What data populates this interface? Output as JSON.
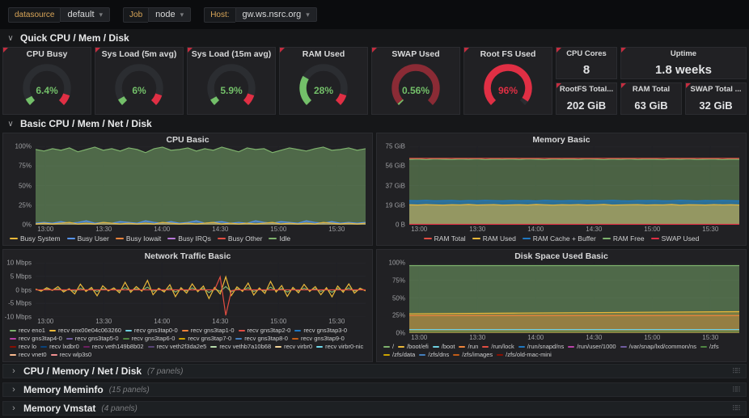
{
  "icons": {
    "caret_down": "▾",
    "chevron_open": "∨",
    "chevron_right": "›",
    "drag_dots": "⠿⠿"
  },
  "topbar": {
    "variables": [
      {
        "label": "datasource",
        "value": "default"
      },
      {
        "label": "Job",
        "value": "node"
      },
      {
        "label": "Host:",
        "value": "gw.ws.nsrc.org"
      }
    ]
  },
  "rows": {
    "quick": {
      "title": "Quick CPU / Mem / Disk"
    },
    "basic": {
      "title": "Basic CPU / Mem / Net / Disk"
    },
    "collapsed": [
      {
        "title": "CPU / Memory / Net / Disk",
        "count": "(7 panels)"
      },
      {
        "title": "Memory Meminfo",
        "count": "(15 panels)"
      },
      {
        "title": "Memory Vmstat",
        "count": "(4 panels)"
      }
    ]
  },
  "gauges": [
    {
      "title": "CPU Busy",
      "value": "6.4%",
      "percent": 6.4,
      "arc_color": "#73bf69",
      "ring_color": "#2b2d31",
      "text_color": "#73bf69",
      "threshold_from": 90,
      "threshold_color": "#e02f44"
    },
    {
      "title": "Sys Load (5m avg)",
      "value": "6%",
      "percent": 6,
      "arc_color": "#73bf69",
      "ring_color": "#2b2d31",
      "text_color": "#73bf69",
      "threshold_from": 90,
      "threshold_color": "#e02f44"
    },
    {
      "title": "Sys Load (15m avg)",
      "value": "5.9%",
      "percent": 5.9,
      "arc_color": "#73bf69",
      "ring_color": "#2b2d31",
      "text_color": "#73bf69",
      "threshold_from": 90,
      "threshold_color": "#e02f44"
    },
    {
      "title": "RAM Used",
      "value": "28%",
      "percent": 28,
      "arc_color": "#73bf69",
      "ring_color": "#2b2d31",
      "text_color": "#73bf69",
      "threshold_from": 90,
      "threshold_color": "#e02f44"
    },
    {
      "title": "SWAP Used",
      "value": "0.56%",
      "percent": 0.56,
      "arc_color": "#73bf69",
      "ring_color": "#8a2b35",
      "text_color": "#73bf69"
    },
    {
      "title": "Root FS Used",
      "value": "96%",
      "percent": 96,
      "arc_color": "#e02f44",
      "ring_color": "#2b2d31",
      "text_color": "#e02f44"
    }
  ],
  "stats": [
    {
      "title": "CPU Cores",
      "value": "8"
    },
    {
      "title": "Uptime",
      "value": "1.8 weeks"
    },
    {
      "title": "RootFS Total...",
      "value": "202 GiB"
    },
    {
      "title": "RAM Total",
      "value": "63 GiB"
    },
    {
      "title": "SWAP Total ...",
      "value": "32 GiB"
    }
  ],
  "chart_data": [
    {
      "type": "area",
      "title": "CPU Basic",
      "ylim": [
        0,
        100
      ],
      "yticks": [
        "100%",
        "75%",
        "50%",
        "25%",
        "0%"
      ],
      "xticks": [
        "13:00",
        "13:30",
        "14:00",
        "14:30",
        "15:00",
        "15:30"
      ],
      "series": [
        {
          "name": "Idle",
          "color": "#7eb26d",
          "fill": 0.5,
          "values": [
            96,
            94,
            97,
            95,
            98,
            93,
            96,
            99,
            95,
            97,
            94,
            98,
            96,
            92,
            97,
            99,
            95,
            96,
            98,
            94,
            97,
            95,
            99,
            96,
            93,
            98,
            96,
            97,
            92,
            95,
            98,
            96,
            94,
            97,
            99,
            95,
            96,
            98,
            95,
            97
          ]
        },
        {
          "name": "Busy User",
          "color": "#5794f2",
          "fill": 0.45,
          "values": [
            2,
            3,
            2,
            4,
            2,
            3,
            5,
            2,
            3,
            2,
            4,
            3,
            2,
            5,
            3,
            2,
            4,
            2,
            3,
            5,
            2,
            3,
            4,
            2,
            3,
            2,
            5,
            3,
            2,
            4,
            3,
            2,
            5,
            3,
            2,
            4,
            2,
            3,
            2,
            3
          ]
        },
        {
          "name": "Busy System",
          "color": "#eab839",
          "fill": 0.45,
          "values": [
            1,
            2,
            1,
            2,
            3,
            1,
            2,
            1,
            3,
            2,
            1,
            2,
            1,
            2,
            1,
            3,
            2,
            1,
            2,
            1,
            2,
            3,
            1,
            2,
            1,
            2,
            1,
            2,
            3,
            1,
            2,
            1,
            2,
            1,
            3,
            2,
            1,
            2,
            1,
            2
          ]
        }
      ],
      "legend": [
        {
          "name": "Busy System",
          "color": "#eab839"
        },
        {
          "name": "Busy User",
          "color": "#5794f2"
        },
        {
          "name": "Busy Iowait",
          "color": "#ef843c"
        },
        {
          "name": "Busy IRQs",
          "color": "#b877d9"
        },
        {
          "name": "Busy Other",
          "color": "#e24d42"
        },
        {
          "name": "Idle",
          "color": "#7eb26d"
        }
      ]
    },
    {
      "type": "area",
      "title": "Memory Basic",
      "ylim": [
        0,
        75
      ],
      "yticks": [
        "75 GiB",
        "56 GiB",
        "37 GiB",
        "19 GiB",
        "0 B"
      ],
      "xticks": [
        "13:00",
        "13:30",
        "14:00",
        "14:30",
        "15:00",
        "15:30"
      ],
      "series": [
        {
          "name": "RAM Free",
          "color": "#7eb26d",
          "fill": 0.45,
          "values": [
            62.5,
            62.8,
            62.3,
            62.9,
            62.6,
            62.4,
            62.8,
            62.5,
            62.9,
            62.3,
            62.7,
            62.5,
            62.8,
            62.4,
            62.9,
            62.6,
            62.3,
            62.8,
            62.5,
            62.7,
            62.4,
            62.9,
            62.6,
            62.3,
            62.8,
            62.5,
            62.9,
            62.4,
            62.7,
            62.6,
            62.3,
            62.8,
            62.5,
            62.9,
            62.4,
            62.6,
            62.8,
            62.3,
            62.7,
            62.5
          ]
        },
        {
          "name": "RAM Cache + Buffer",
          "color": "#1f78c1",
          "fill": 0.65,
          "values": [
            23.2,
            23.0,
            23.4,
            22.9,
            23.1,
            23.3,
            22.8,
            23.2,
            23.0,
            23.4,
            23.1,
            22.9,
            23.3,
            23.0,
            23.2,
            22.8,
            23.4,
            23.1,
            22.9,
            23.2,
            23.0,
            23.3,
            22.9,
            23.1,
            23.4,
            23.0,
            22.8,
            23.2,
            23.1,
            23.3,
            22.9,
            23.0,
            23.4,
            23.1,
            22.8,
            23.2,
            23.0,
            23.3,
            23.1,
            22.9
          ]
        },
        {
          "name": "RAM Used",
          "color": "#eab839",
          "fill": 0.55,
          "values": [
            19.1,
            18.9,
            19.3,
            19.0,
            18.8,
            19.2,
            19.0,
            19.4,
            18.9,
            19.1,
            19.3,
            18.8,
            19.0,
            19.2,
            18.9,
            19.4,
            19.1,
            18.8,
            19.2,
            19.0,
            19.3,
            18.9,
            19.1,
            19.4,
            18.8,
            19.0,
            19.2,
            19.3,
            18.9,
            19.1,
            19.0,
            19.4,
            18.8,
            19.2,
            19.1,
            18.9,
            19.3,
            19.0,
            19.2,
            18.9
          ]
        },
        {
          "name": "RAM Total",
          "color": "#e24d42",
          "fill": 0,
          "values": [
            63.5,
            63.5
          ]
        },
        {
          "name": "SWAP Used",
          "color": "#e02f44",
          "fill": 0,
          "values": [
            0.4,
            0.4
          ]
        }
      ],
      "legend": [
        {
          "name": "RAM Total",
          "color": "#e24d42"
        },
        {
          "name": "RAM Used",
          "color": "#eab839"
        },
        {
          "name": "RAM Cache + Buffer",
          "color": "#1f78c1"
        },
        {
          "name": "RAM Free",
          "color": "#7eb26d"
        },
        {
          "name": "SWAP Used",
          "color": "#e02f44"
        }
      ]
    },
    {
      "type": "line",
      "title": "Network Traffic Basic",
      "ylim": [
        -10,
        10
      ],
      "yticks": [
        "10 Mbps",
        "5 Mbps",
        "0 bps",
        "-5 Mbps",
        "-10 Mbps"
      ],
      "xticks": [
        "13:00",
        "13:30",
        "14:00",
        "14:30",
        "15:00",
        "15:30"
      ],
      "series": [
        {
          "name": "recv eno1",
          "color": "#7eb26d",
          "fill": 0,
          "values": [
            0.1,
            -0.2,
            0.3,
            -0.1,
            0.4,
            -0.3,
            0.2,
            -0.5,
            0.6,
            -0.2,
            0.3,
            -0.6,
            0.4,
            -0.1,
            0.2,
            -0.4,
            0.8,
            -0.3,
            0.4,
            -0.2,
            1.0,
            -0.5,
            0.2,
            -0.3,
            0.6,
            -0.8,
            0.3,
            -0.4,
            0.7,
            -0.2,
            0.5,
            -1.0,
            0.3,
            -0.5,
            1.2,
            -0.7,
            0.4,
            -0.2,
            0.8,
            -0.6,
            0.2,
            -0.4,
            1.0,
            -0.3,
            0.5,
            -0.8,
            0.3,
            -0.4,
            0.6,
            -0.2,
            0.4,
            -0.6,
            0.3,
            -0.9,
            0.5,
            -0.3,
            0.7,
            -0.4,
            0.2,
            -0.1
          ]
        },
        {
          "name": "recv enx00e04c063260",
          "color": "#eab839",
          "fill": 0,
          "values": [
            0.3,
            -0.5,
            0.8,
            -0.2,
            1.2,
            -0.8,
            0.4,
            -1.5,
            2.1,
            -0.6,
            0.9,
            -2.2,
            1.5,
            -0.4,
            0.7,
            -1.1,
            2.8,
            -0.9,
            1.2,
            -0.5,
            3.5,
            -1.8,
            0.6,
            -0.8,
            1.9,
            -2.5,
            0.8,
            -1.2,
            2.2,
            -0.7,
            1.4,
            -3.2,
            0.9,
            -1.5,
            4.8,
            -2.1,
            1.1,
            -0.6,
            2.5,
            -1.9,
            0.7,
            -1.3,
            3.1,
            -0.8,
            1.6,
            -2.4,
            0.9,
            -1.1,
            2.0,
            -0.6,
            1.2,
            -1.8,
            0.8,
            -2.6,
            1.4,
            -0.9,
            2.2,
            -1.2,
            0.6,
            -0.4
          ]
        },
        {
          "name": "recv gns3tap4-0",
          "color": "#e24d42",
          "fill": 0,
          "values": [
            0,
            0,
            0,
            0,
            0,
            0,
            0,
            0,
            0,
            0,
            0,
            0,
            0,
            0,
            0,
            0,
            0,
            0,
            0,
            0,
            0,
            0,
            0,
            0,
            0,
            0,
            0,
            0,
            0,
            0,
            0,
            0,
            0,
            4.8,
            -9.4,
            -0.3,
            0,
            0,
            0,
            0,
            0,
            0,
            0,
            0,
            0,
            0,
            0,
            0,
            0,
            0,
            0,
            0,
            0,
            0,
            0,
            0,
            0,
            0,
            0,
            0
          ]
        }
      ],
      "legend": [
        {
          "name": "recv eno1",
          "color": "#7eb26d"
        },
        {
          "name": "recv enx00e04c063260",
          "color": "#eab839"
        },
        {
          "name": "recv gns3tap0-0",
          "color": "#6ed0e0"
        },
        {
          "name": "recv gns3tap1-0",
          "color": "#ef843c"
        },
        {
          "name": "recv gns3tap2-0",
          "color": "#e24d42"
        },
        {
          "name": "recv gns3tap3-0",
          "color": "#1f78c1"
        },
        {
          "name": "recv gns3tap4-0",
          "color": "#ba43a9"
        },
        {
          "name": "recv gns3tap5-0",
          "color": "#705da0"
        },
        {
          "name": "recv gns3tap6-0",
          "color": "#508642"
        },
        {
          "name": "recv gns3tap7-0",
          "color": "#cca300"
        },
        {
          "name": "recv gns3tap8-0",
          "color": "#447ebc"
        },
        {
          "name": "recv gns3tap9-0",
          "color": "#c15c17"
        },
        {
          "name": "recv lo",
          "color": "#890f02"
        },
        {
          "name": "recv lxdbr0",
          "color": "#0a437c"
        },
        {
          "name": "recv veth149b8b02",
          "color": "#6d1f62"
        },
        {
          "name": "recv veth2f3da2e5",
          "color": "#584477"
        },
        {
          "name": "recv vethb7a10b68",
          "color": "#b7dbab"
        },
        {
          "name": "recv virbr0",
          "color": "#f4d598"
        },
        {
          "name": "recv virbr0-nic",
          "color": "#70dbed"
        },
        {
          "name": "recv vnet0",
          "color": "#f9ba8f"
        },
        {
          "name": "recv wlp3s0",
          "color": "#f29191"
        }
      ]
    },
    {
      "type": "area",
      "title": "Disk Space Used Basic",
      "ylim": [
        0,
        100
      ],
      "yticks": [
        "100%",
        "75%",
        "50%",
        "25%",
        "0%"
      ],
      "xticks": [
        "13:00",
        "13:30",
        "14:00",
        "14:30",
        "15:00",
        "15:30"
      ],
      "series": [
        {
          "name": "/",
          "color": "#7eb26d",
          "fill": 0.5,
          "values": [
            96,
            96,
            96,
            96
          ]
        },
        {
          "name": "/boot/efi",
          "color": "#eab839",
          "fill": 0.25,
          "values": [
            27.5,
            28.5,
            29.5,
            30.5
          ]
        },
        {
          "name": "/run",
          "color": "#ef843c",
          "fill": 0.25,
          "values": [
            25,
            25,
            25,
            25
          ]
        },
        {
          "name": "/boot",
          "color": "#6ed0e0",
          "fill": 0,
          "values": [
            5,
            5,
            5,
            5
          ]
        },
        {
          "name": "/zfs",
          "color": "#508642",
          "fill": 0,
          "values": [
            2.2,
            2.2,
            2.2,
            2.2
          ]
        }
      ],
      "legend": [
        {
          "name": "/",
          "color": "#7eb26d"
        },
        {
          "name": "/boot/efi",
          "color": "#eab839"
        },
        {
          "name": "/boot",
          "color": "#6ed0e0"
        },
        {
          "name": "/run",
          "color": "#ef843c"
        },
        {
          "name": "/run/lock",
          "color": "#e24d42"
        },
        {
          "name": "/run/snapd/ns",
          "color": "#1f78c1"
        },
        {
          "name": "/run/user/1000",
          "color": "#ba43a9"
        },
        {
          "name": "/var/snap/lxd/common/ns",
          "color": "#705da0"
        },
        {
          "name": "/zfs",
          "color": "#508642"
        },
        {
          "name": "/zfs/data",
          "color": "#cca300"
        },
        {
          "name": "/zfs/dns",
          "color": "#447ebc"
        },
        {
          "name": "/zfs/images",
          "color": "#c15c17"
        },
        {
          "name": "/zfs/old-mac-mini",
          "color": "#890f02"
        }
      ]
    }
  ]
}
